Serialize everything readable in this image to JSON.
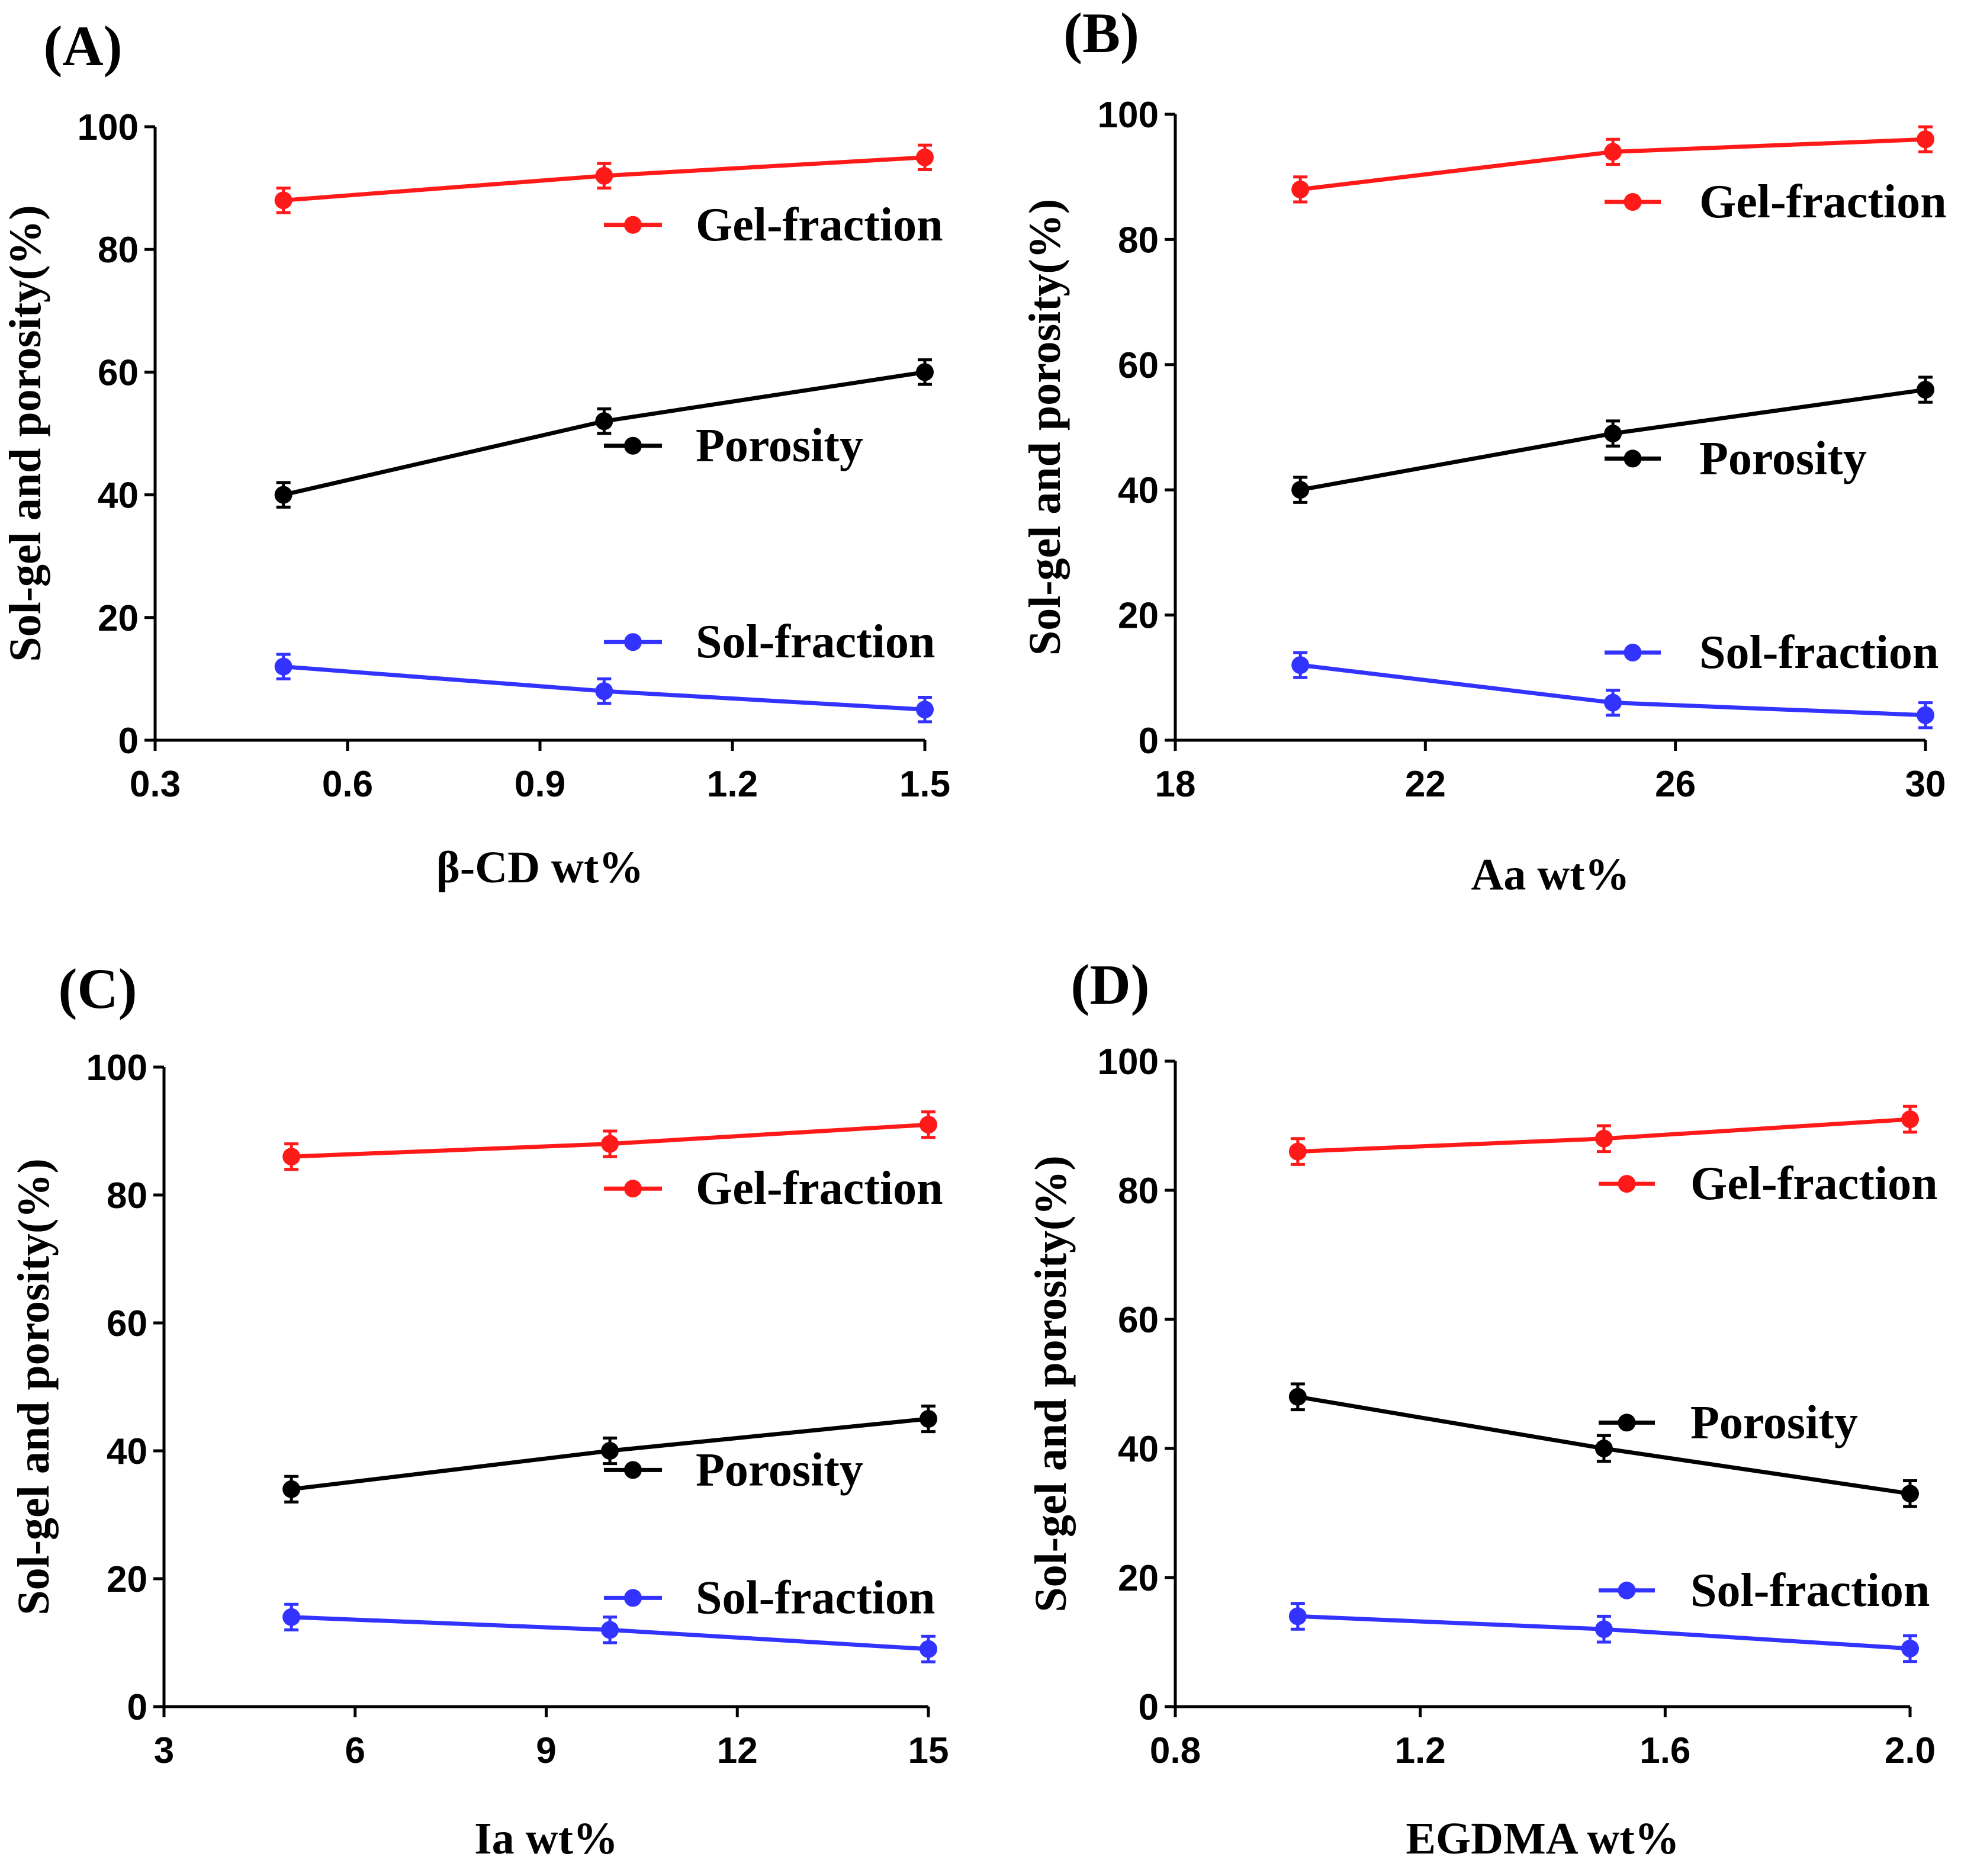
{
  "colors": {
    "Gel-fraction": "#ff1a1a",
    "Porosity": "#000000",
    "Sol-fraction": "#3333ff"
  },
  "chart_data": [
    {
      "panel": "(A)",
      "type": "line",
      "xlabel": "β-CD wt%",
      "ylabel": "Sol-gel and porosity(%)",
      "xlim": [
        0.3,
        1.5
      ],
      "ylim": [
        0,
        100
      ],
      "xticks": [
        0.3,
        0.6,
        0.9,
        1.2,
        1.5
      ],
      "xtick_labels": [
        "0.3",
        "0.6",
        "0.9",
        "1.2",
        "1.5"
      ],
      "yticks": [
        0,
        20,
        40,
        60,
        80,
        100
      ],
      "ytick_labels": [
        "0",
        "20",
        "40",
        "60",
        "80",
        "100"
      ],
      "x": [
        0.5,
        1.0,
        1.5
      ],
      "series": [
        {
          "name": "Gel-fraction",
          "values": [
            88,
            92,
            95
          ],
          "error": [
            2,
            2,
            2
          ],
          "legend_y": 84
        },
        {
          "name": "Porosity",
          "values": [
            40,
            52,
            60
          ],
          "error": [
            2,
            2,
            2
          ],
          "legend_y": 48
        },
        {
          "name": "Sol-fraction",
          "values": [
            12,
            8,
            5
          ],
          "error": [
            2,
            2,
            2
          ],
          "legend_y": 16
        }
      ]
    },
    {
      "panel": "(B)",
      "type": "line",
      "xlabel": "Aa wt%",
      "ylabel": "Sol-gel and porosity(%)",
      "xlim": [
        18,
        30
      ],
      "ylim": [
        0,
        100
      ],
      "xticks": [
        18,
        22,
        26,
        30
      ],
      "xtick_labels": [
        "18",
        "22",
        "26",
        "30"
      ],
      "yticks": [
        0,
        20,
        40,
        60,
        80,
        100
      ],
      "ytick_labels": [
        "0",
        "20",
        "40",
        "60",
        "80",
        "100"
      ],
      "x": [
        20,
        25,
        30
      ],
      "series": [
        {
          "name": "Gel-fraction",
          "values": [
            88,
            94,
            96
          ],
          "error": [
            2,
            2,
            2
          ],
          "legend_y": 86
        },
        {
          "name": "Porosity",
          "values": [
            40,
            49,
            56
          ],
          "error": [
            2,
            2,
            2
          ],
          "legend_y": 45
        },
        {
          "name": "Sol-fraction",
          "values": [
            12,
            6,
            4
          ],
          "error": [
            2,
            2,
            2
          ],
          "legend_y": 14
        }
      ]
    },
    {
      "panel": "(C)",
      "type": "line",
      "xlabel": "Ia wt%",
      "ylabel": "Sol-gel and porosity(%)",
      "xlim": [
        3,
        15
      ],
      "ylim": [
        0,
        100
      ],
      "xticks": [
        3,
        6,
        9,
        12,
        15
      ],
      "xtick_labels": [
        "3",
        "6",
        "9",
        "12",
        "15"
      ],
      "yticks": [
        0,
        20,
        40,
        60,
        80,
        100
      ],
      "ytick_labels": [
        "0",
        "20",
        "40",
        "60",
        "80",
        "100"
      ],
      "x": [
        5,
        10,
        15
      ],
      "series": [
        {
          "name": "Gel-fraction",
          "values": [
            86,
            88,
            91
          ],
          "error": [
            2,
            2,
            2
          ],
          "legend_y": 81
        },
        {
          "name": "Porosity",
          "values": [
            34,
            40,
            45
          ],
          "error": [
            2,
            2,
            2
          ],
          "legend_y": 37
        },
        {
          "name": "Sol-fraction",
          "values": [
            14,
            12,
            9
          ],
          "error": [
            2,
            2,
            2
          ],
          "legend_y": 17
        }
      ]
    },
    {
      "panel": "(D)",
      "type": "line",
      "xlabel": "EGDMA wt%",
      "ylabel": "Sol-gel and porosity(%)",
      "xlim": [
        0.8,
        2.0
      ],
      "ylim": [
        0,
        100
      ],
      "xticks": [
        0.8,
        1.2,
        1.6,
        2.0
      ],
      "xtick_labels": [
        "0.8",
        "1.2",
        "1.6",
        "2.0"
      ],
      "yticks": [
        0,
        20,
        40,
        60,
        80,
        100
      ],
      "ytick_labels": [
        "0",
        "20",
        "40",
        "60",
        "80",
        "100"
      ],
      "x": [
        1.0,
        1.5,
        2.0
      ],
      "series": [
        {
          "name": "Gel-fraction",
          "values": [
            86,
            88,
            91
          ],
          "error": [
            2,
            2,
            2
          ],
          "legend_y": 81
        },
        {
          "name": "Porosity",
          "values": [
            48,
            40,
            33
          ],
          "error": [
            2,
            2,
            2
          ],
          "legend_y": 44
        },
        {
          "name": "Sol-fraction",
          "values": [
            14,
            12,
            9
          ],
          "error": [
            2,
            2,
            2
          ],
          "legend_y": 18
        }
      ]
    }
  ]
}
